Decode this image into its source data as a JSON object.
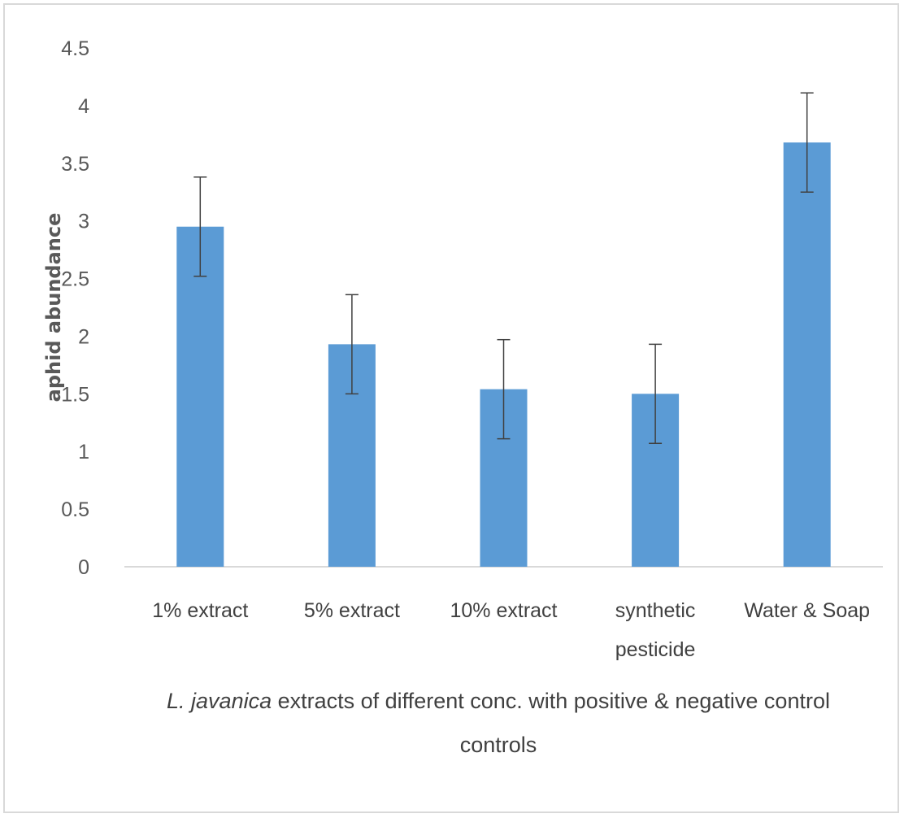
{
  "chart_data": {
    "type": "bar",
    "categories": [
      "1% extract",
      "5% extract",
      "10% extract",
      "synthetic pesticide",
      "Water & Soap"
    ],
    "category_lines": [
      [
        "1% extract"
      ],
      [
        "5% extract"
      ],
      [
        "10% extract"
      ],
      [
        "synthetic",
        "pesticide"
      ],
      [
        "Water & Soap"
      ]
    ],
    "values": [
      2.95,
      1.93,
      1.54,
      1.5,
      3.68
    ],
    "error": [
      0.43,
      0.43,
      0.43,
      0.43,
      0.43
    ],
    "ylim": [
      0,
      4.5
    ],
    "yticks": [
      0,
      0.5,
      1,
      1.5,
      2,
      2.5,
      3,
      3.5,
      4,
      4.5
    ],
    "ylabel": "aphid abundance",
    "xlabel_italic": "L. javanica",
    "xlabel_line1_rest": " extracts of different conc. with positive & negative control",
    "xlabel_line2": "controls",
    "grid": false,
    "legend": "none",
    "bar_color": "#5b9bd5",
    "errorbar_color": "#404040"
  }
}
